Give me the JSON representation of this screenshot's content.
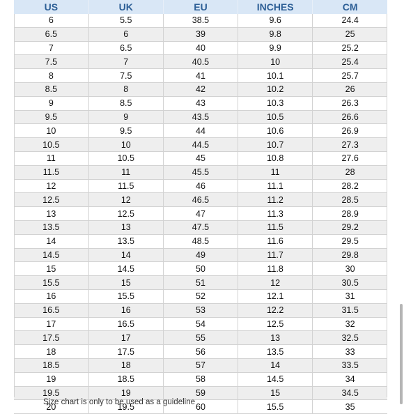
{
  "table": {
    "headers": [
      "US",
      "UK",
      "EU",
      "INCHES",
      "CM"
    ],
    "rows": [
      [
        "6",
        "5.5",
        "38.5",
        "9.6",
        "24.4"
      ],
      [
        "6.5",
        "6",
        "39",
        "9.8",
        "25"
      ],
      [
        "7",
        "6.5",
        "40",
        "9.9",
        "25.2"
      ],
      [
        "7.5",
        "7",
        "40.5",
        "10",
        "25.4"
      ],
      [
        "8",
        "7.5",
        "41",
        "10.1",
        "25.7"
      ],
      [
        "8.5",
        "8",
        "42",
        "10.2",
        "26"
      ],
      [
        "9",
        "8.5",
        "43",
        "10.3",
        "26.3"
      ],
      [
        "9.5",
        "9",
        "43.5",
        "10.5",
        "26.6"
      ],
      [
        "10",
        "9.5",
        "44",
        "10.6",
        "26.9"
      ],
      [
        "10.5",
        "10",
        "44.5",
        "10.7",
        "27.3"
      ],
      [
        "11",
        "10.5",
        "45",
        "10.8",
        "27.6"
      ],
      [
        "11.5",
        "11",
        "45.5",
        "11",
        "28"
      ],
      [
        "12",
        "11.5",
        "46",
        "11.1",
        "28.2"
      ],
      [
        "12.5",
        "12",
        "46.5",
        "11.2",
        "28.5"
      ],
      [
        "13",
        "12.5",
        "47",
        "11.3",
        "28.9"
      ],
      [
        "13.5",
        "13",
        "47.5",
        "11.5",
        "29.2"
      ],
      [
        "14",
        "13.5",
        "48.5",
        "11.6",
        "29.5"
      ],
      [
        "14.5",
        "14",
        "49",
        "11.7",
        "29.8"
      ],
      [
        "15",
        "14.5",
        "50",
        "11.8",
        "30"
      ],
      [
        "15.5",
        "15",
        "51",
        "12",
        "30.5"
      ],
      [
        "16",
        "15.5",
        "52",
        "12.1",
        "31"
      ],
      [
        "16.5",
        "16",
        "53",
        "12.2",
        "31.5"
      ],
      [
        "17",
        "16.5",
        "54",
        "12.5",
        "32"
      ],
      [
        "17.5",
        "17",
        "55",
        "13",
        "32.5"
      ],
      [
        "18",
        "17.5",
        "56",
        "13.5",
        "33"
      ],
      [
        "18.5",
        "18",
        "57",
        "14",
        "33.5"
      ],
      [
        "19",
        "18.5",
        "58",
        "14.5",
        "34"
      ],
      [
        "19.5",
        "19",
        "59",
        "15",
        "34.5"
      ],
      [
        "20",
        "19.5",
        "60",
        "15.5",
        "35"
      ]
    ]
  },
  "footnote": "Size chart is only to be used as a guideline",
  "colors": {
    "header_bg": "#d9e7f6",
    "header_text": "#2d5f96",
    "stripe": "#eeeeee"
  }
}
